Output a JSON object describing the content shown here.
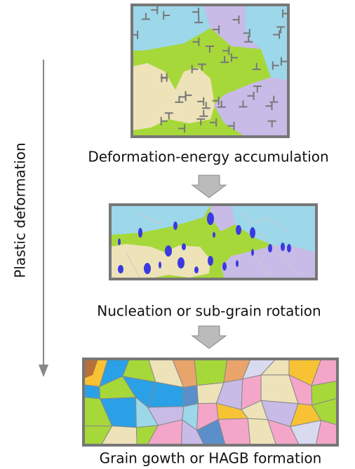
{
  "side_label": "Plastic deformation",
  "stages": [
    {
      "label": "Deformation-energy accumulation"
    },
    {
      "label": "Nucleation or sub-grain rotation"
    },
    {
      "label": "Grain gowth or HAGB formation"
    }
  ]
}
